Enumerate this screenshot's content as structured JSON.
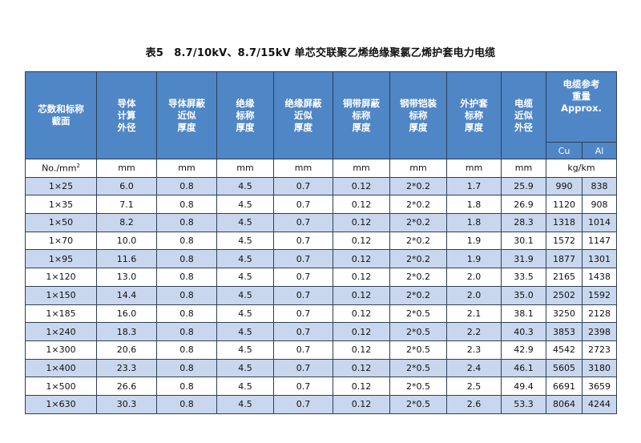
{
  "title": "表5　8.7/10kV、8.7/15kV 单芯交联聚乙烯绝缘聚氯乙烯护套电力电缆",
  "columns": [
    {
      "lines": [
        "芯数和标称",
        "截面"
      ]
    },
    {
      "lines": [
        "导体",
        "计算",
        "外径"
      ]
    },
    {
      "lines": [
        "导体屏蔽",
        "近似",
        "厚度"
      ]
    },
    {
      "lines": [
        "绝缘",
        "标称",
        "厚度"
      ]
    },
    {
      "lines": [
        "绝缘屏蔽",
        "近似",
        "厚度"
      ]
    },
    {
      "lines": [
        "铜带屏蔽",
        "标称",
        "厚度"
      ]
    },
    {
      "lines": [
        "钢带铠装",
        "标称",
        "厚度"
      ]
    },
    {
      "lines": [
        "外护套",
        "标称",
        "厚度"
      ]
    },
    {
      "lines": [
        "电缆",
        "近似",
        "外径"
      ]
    }
  ],
  "weight_header": {
    "lines": [
      "电缆参考",
      "重量",
      "Approx."
    ],
    "sub": [
      "Cu",
      "Al"
    ]
  },
  "units": {
    "section": "No./mm",
    "section_sup": "2",
    "mm": "mm",
    "weight": "kg/km"
  },
  "rows": [
    [
      "1×25",
      "6.0",
      "0.8",
      "4.5",
      "0.7",
      "0.12",
      "2*0.2",
      "1.7",
      "25.9",
      "990",
      "838"
    ],
    [
      "1×35",
      "7.1",
      "0.8",
      "4.5",
      "0.7",
      "0.12",
      "2*0.2",
      "1.8",
      "26.9",
      "1120",
      "908"
    ],
    [
      "1×50",
      "8.2",
      "0.8",
      "4.5",
      "0.7",
      "0.12",
      "2*0.2",
      "1.8",
      "28.3",
      "1318",
      "1014"
    ],
    [
      "1×70",
      "10.0",
      "0.8",
      "4.5",
      "0.7",
      "0.12",
      "2*0.2",
      "1.9",
      "30.1",
      "1572",
      "1147"
    ],
    [
      "1×95",
      "11.6",
      "0.8",
      "4.5",
      "0.7",
      "0.12",
      "2*0.2",
      "1.9",
      "31.9",
      "1877",
      "1301"
    ],
    [
      "1×120",
      "13.0",
      "0.8",
      "4.5",
      "0.7",
      "0.12",
      "2*0.2",
      "2.0",
      "33.5",
      "2165",
      "1438"
    ],
    [
      "1×150",
      "14.4",
      "0.8",
      "4.5",
      "0.7",
      "0.12",
      "2*0.2",
      "2.0",
      "35.0",
      "2502",
      "1592"
    ],
    [
      "1×185",
      "16.0",
      "0.8",
      "4.5",
      "0.7",
      "0.12",
      "2*0.5",
      "2.1",
      "38.1",
      "3250",
      "2128"
    ],
    [
      "1×240",
      "18.3",
      "0.8",
      "4.5",
      "0.7",
      "0.12",
      "2*0.5",
      "2.2",
      "40.3",
      "3853",
      "2398"
    ],
    [
      "1×300",
      "20.6",
      "0.8",
      "4.5",
      "0.7",
      "0.12",
      "2*0.5",
      "2.3",
      "42.9",
      "4542",
      "2723"
    ],
    [
      "1×400",
      "23.3",
      "0.8",
      "4.5",
      "0.7",
      "0.12",
      "2*0.5",
      "2.4",
      "46.1",
      "5605",
      "3180"
    ],
    [
      "1×500",
      "26.6",
      "0.8",
      "4.5",
      "0.7",
      "0.12",
      "2*0.5",
      "2.5",
      "49.4",
      "6691",
      "3659"
    ],
    [
      "1×630",
      "30.3",
      "0.8",
      "4.5",
      "0.7",
      "0.12",
      "2*0.5",
      "2.6",
      "53.3",
      "8064",
      "4244"
    ]
  ],
  "colors": {
    "header_bg": "#4f86c6",
    "row_alt_bg": "#c8d7ee",
    "border": "#2e3f55"
  }
}
